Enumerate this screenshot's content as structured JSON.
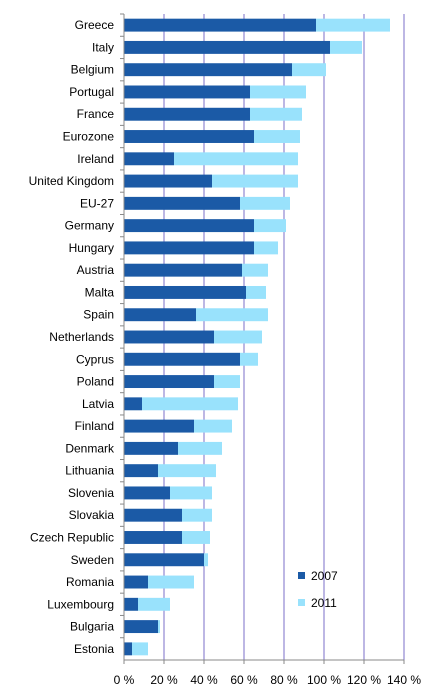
{
  "chart_data": {
    "type": "bar",
    "orientation": "horizontal",
    "stacked": true,
    "title": "",
    "xlabel": "",
    "ylabel": "",
    "xlim": [
      0,
      140
    ],
    "grid": true,
    "legend_position": "bottom-right (inside plot)",
    "categories": [
      "Greece",
      "Italy",
      "Belgium",
      "Portugal",
      "France",
      "Eurozone",
      "Ireland",
      "United Kingdom",
      "EU-27",
      "Germany",
      "Hungary",
      "Austria",
      "Malta",
      "Spain",
      "Netherlands",
      "Cyprus",
      "Poland",
      "Latvia",
      "Finland",
      "Denmark",
      "Lithuania",
      "Slovenia",
      "Slovakia",
      "Czech Republic",
      "Sweden",
      "Romania",
      "Luxembourg",
      "Bulgaria",
      "Estonia"
    ],
    "x_ticks": [
      "0 %",
      "20 %",
      "40 %",
      "60 %",
      "80 %",
      "100 %",
      "120 %",
      "140 %"
    ],
    "series": [
      {
        "name": "2007",
        "color": "#1b5aa6",
        "values": [
          96,
          103,
          84,
          63,
          63,
          65,
          25,
          44,
          58,
          65,
          65,
          59,
          61,
          36,
          45,
          58,
          45,
          9,
          35,
          27,
          17,
          23,
          29,
          29,
          40,
          12,
          7,
          17,
          4
        ]
      },
      {
        "name": "2011",
        "color": "#99e2fc",
        "values": [
          37,
          16,
          17,
          28,
          26,
          23,
          62,
          43,
          25,
          16,
          12,
          13,
          10,
          36,
          24,
          9,
          13,
          48,
          19,
          22,
          29,
          21,
          15,
          14,
          2,
          23,
          16,
          1,
          8
        ]
      }
    ]
  }
}
